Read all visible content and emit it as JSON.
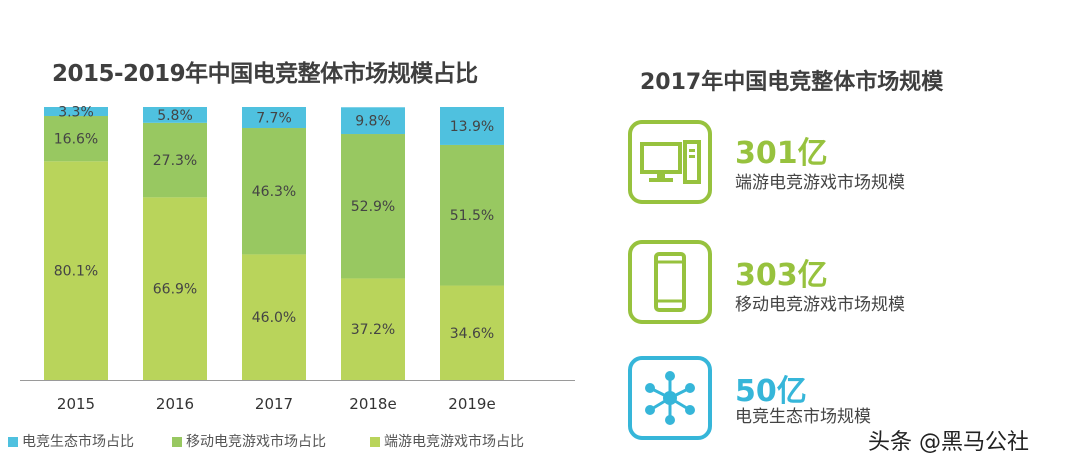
{
  "chart_data": {
    "type": "bar",
    "stacked": true,
    "percent_stacked": true,
    "title": "2015-2019年中国电竞整体市场规模占比",
    "categories": [
      "2015",
      "2016",
      "2017",
      "2018e",
      "2019e"
    ],
    "series": [
      {
        "name": "端游电竞游戏市场占比",
        "color": "#b9d45b",
        "values": [
          80.1,
          66.9,
          46.0,
          37.2,
          34.6
        ],
        "labels": [
          "80.1%",
          "66.9%",
          "46.0%",
          "37.2%",
          "34.6%"
        ]
      },
      {
        "name": "移动电竞游戏市场占比",
        "color": "#98c861",
        "values": [
          16.6,
          27.3,
          46.3,
          52.9,
          51.5
        ],
        "labels": [
          "16.6%",
          "27.3%",
          "46.3%",
          "52.9%",
          "51.5%"
        ]
      },
      {
        "name": "电竞生态市场占比",
        "color": "#4fc1df",
        "values": [
          3.3,
          5.8,
          7.7,
          9.8,
          13.9
        ],
        "labels": [
          "3.3%",
          "5.8%",
          "7.7%",
          "9.8%",
          "13.9%"
        ]
      }
    ],
    "legend_position": "bottom",
    "grid": false
  },
  "right_panel": {
    "title": "2017年中国电竞整体市场规模",
    "stats": [
      {
        "value": "301亿",
        "label": "端游电竞游戏市场规模",
        "icon": "desktop-computer-icon",
        "color": "#97c23e"
      },
      {
        "value": "303亿",
        "label": "移动电竞游戏市场规模",
        "icon": "mobile-phone-icon",
        "color": "#97c23e"
      },
      {
        "value": "50亿",
        "label": "电竞生态市场规模",
        "icon": "network-hub-icon",
        "color": "#36b6d9"
      }
    ]
  },
  "watermark": "头条 @黑马公社"
}
